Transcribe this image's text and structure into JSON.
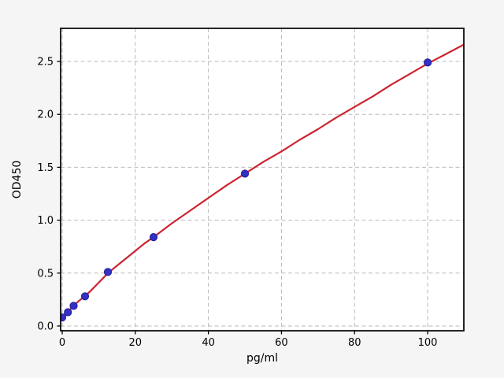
{
  "figure": {
    "background": "#f5f5f5",
    "plot_background": "#ffffff",
    "grid_color": "#bababa",
    "spine_color": "#000000",
    "tick_color": "#000000"
  },
  "chart_data": {
    "type": "scatter",
    "title": "",
    "xlabel": "pg/ml",
    "ylabel": "OD450",
    "xlim": [
      -0.43,
      109.9
    ],
    "ylim": [
      -0.045,
      2.813
    ],
    "grid": {
      "visible": true,
      "style": "dashed",
      "position": "both"
    },
    "legend": {
      "visible": false
    },
    "xticks": [
      {
        "value": 0,
        "label": "0"
      },
      {
        "value": 20,
        "label": "20"
      },
      {
        "value": 40,
        "label": "40"
      },
      {
        "value": 60,
        "label": "60"
      },
      {
        "value": 80,
        "label": "80"
      },
      {
        "value": 100,
        "label": "100"
      }
    ],
    "yticks": [
      {
        "value": 0.0,
        "label": "0.0"
      },
      {
        "value": 0.5,
        "label": "0.5"
      },
      {
        "value": 1.0,
        "label": "1.0"
      },
      {
        "value": 1.5,
        "label": "1.5"
      },
      {
        "value": 2.0,
        "label": "2.0"
      },
      {
        "value": 2.5,
        "label": "2.5"
      }
    ],
    "series": [
      {
        "name": "standard-points",
        "type": "scatter",
        "marker": "circle",
        "marker_radius": 4.6,
        "color": "#3330c4",
        "edge_color": "#24209a",
        "x": [
          0,
          1.5625,
          3.125,
          6.25,
          12.5,
          25,
          50,
          100
        ],
        "y": [
          0.08,
          0.13,
          0.19,
          0.28,
          0.51,
          0.84,
          1.44,
          2.49
        ]
      },
      {
        "name": "fit-curve",
        "type": "line",
        "color": "#cc2431",
        "line_width": 2.2,
        "x": [
          -0.4,
          1,
          2,
          3.125,
          4,
          5,
          6.25,
          8,
          10,
          12.5,
          15,
          17.5,
          20,
          22.5,
          25,
          30,
          35,
          40,
          45,
          50,
          55,
          60,
          65,
          70,
          75,
          80,
          85,
          90,
          95,
          100,
          105,
          109.9
        ],
        "y": [
          0.08,
          0.12,
          0.15,
          0.19,
          0.22,
          0.25,
          0.28,
          0.34,
          0.41,
          0.5,
          0.57,
          0.64,
          0.71,
          0.78,
          0.84,
          0.97,
          1.09,
          1.21,
          1.33,
          1.44,
          1.55,
          1.65,
          1.76,
          1.86,
          1.97,
          2.07,
          2.17,
          2.28,
          2.38,
          2.48,
          2.57,
          2.66
        ]
      }
    ]
  }
}
